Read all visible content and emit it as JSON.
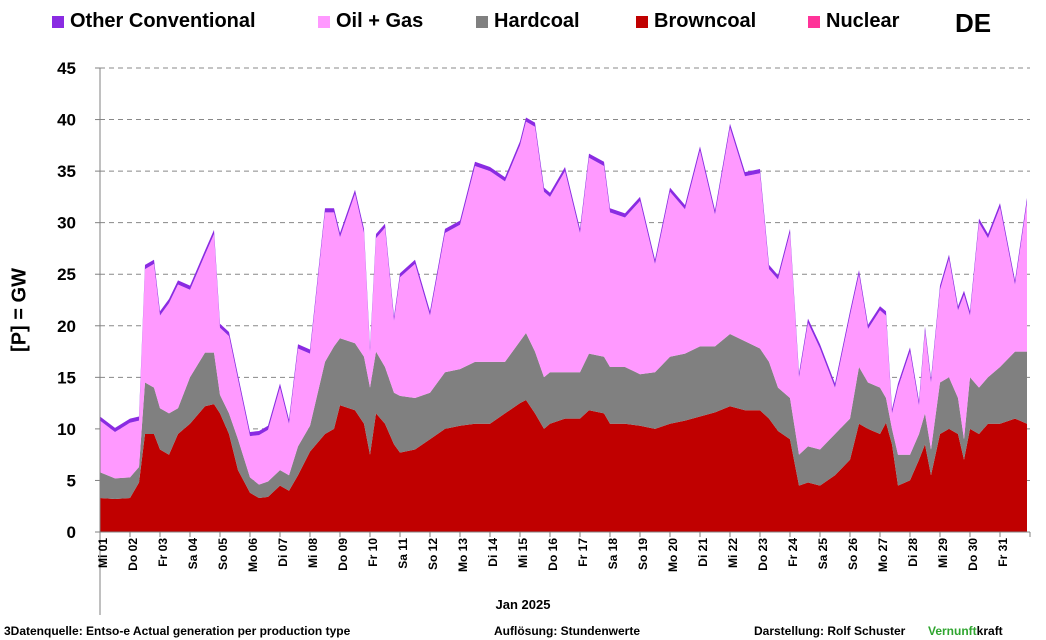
{
  "country": "DE",
  "legend": [
    {
      "name": "Other Conventional",
      "color": "#8a2be2"
    },
    {
      "name": "Oil + Gas",
      "color": "#ff99ff"
    },
    {
      "name": "Hardcoal",
      "color": "#808080"
    },
    {
      "name": "Browncoal",
      "color": "#c00000"
    },
    {
      "name": "Nuclear",
      "color": "#ff3399"
    }
  ],
  "axis": {
    "ylabel": "[P] =  GW",
    "xlabel": "Jan 2025"
  },
  "footer": {
    "source": "3Datenquelle: Entso-e  Actual generation per production type",
    "resolution": "Auflösung: Stundenwerte",
    "author": "Darstellung:  Rolf Schuster",
    "brand_part1": "Vernunft",
    "brand_part2": "kraft"
  },
  "chart_data": {
    "type": "area",
    "stacked": true,
    "ylim": [
      0,
      45
    ],
    "yticks": [
      0,
      5,
      10,
      15,
      20,
      25,
      30,
      35,
      40,
      45
    ],
    "grid": "horizontal dashed",
    "legend_position": "top",
    "x_days": [
      "Mi 01",
      "Do 02",
      "Fr 03",
      "Sa 04",
      "So 05",
      "Mo 06",
      "Di 07",
      "Mi 08",
      "Do 09",
      "Fr 10",
      "Sa 11",
      "So 12",
      "Mo 13",
      "Di 14",
      "Mi 15",
      "Do 16",
      "Fr 17",
      "Sa 18",
      "So 19",
      "Mo 20",
      "Di 21",
      "Mi 22",
      "Do 23",
      "Fr 24",
      "Sa 25",
      "So 26",
      "Mo 27",
      "Di 28",
      "Mi 29",
      "Do 30",
      "Fr 31"
    ],
    "x_unit": "day of January 2025 (1.0 = start of Mi 01)",
    "series": [
      {
        "name": "Browncoal",
        "color": "#c00000",
        "points": [
          [
            1.0,
            3.3
          ],
          [
            1.5,
            3.2
          ],
          [
            2.0,
            3.3
          ],
          [
            2.3,
            4.8
          ],
          [
            2.5,
            9.5
          ],
          [
            2.8,
            9.5
          ],
          [
            3.0,
            8.0
          ],
          [
            3.3,
            7.5
          ],
          [
            3.6,
            9.5
          ],
          [
            4.0,
            10.5
          ],
          [
            4.5,
            12.2
          ],
          [
            4.8,
            12.4
          ],
          [
            5.0,
            11.5
          ],
          [
            5.3,
            9.5
          ],
          [
            5.6,
            6.0
          ],
          [
            6.0,
            3.8
          ],
          [
            6.3,
            3.3
          ],
          [
            6.6,
            3.4
          ],
          [
            7.0,
            4.5
          ],
          [
            7.3,
            4.0
          ],
          [
            7.6,
            5.5
          ],
          [
            8.0,
            7.8
          ],
          [
            8.5,
            9.5
          ],
          [
            8.8,
            10.0
          ],
          [
            9.0,
            12.3
          ],
          [
            9.5,
            11.8
          ],
          [
            9.8,
            10.5
          ],
          [
            10.0,
            7.5
          ],
          [
            10.2,
            11.5
          ],
          [
            10.5,
            10.5
          ],
          [
            10.8,
            8.5
          ],
          [
            11.0,
            7.7
          ],
          [
            11.5,
            8.0
          ],
          [
            12.0,
            9.0
          ],
          [
            12.5,
            10.0
          ],
          [
            13.0,
            10.3
          ],
          [
            13.5,
            10.5
          ],
          [
            14.0,
            10.5
          ],
          [
            14.5,
            11.5
          ],
          [
            15.0,
            12.5
          ],
          [
            15.2,
            12.8
          ],
          [
            15.5,
            11.5
          ],
          [
            15.8,
            10.0
          ],
          [
            16.0,
            10.5
          ],
          [
            16.5,
            11.0
          ],
          [
            17.0,
            11.0
          ],
          [
            17.3,
            11.8
          ],
          [
            17.8,
            11.5
          ],
          [
            18.0,
            10.5
          ],
          [
            18.5,
            10.5
          ],
          [
            19.0,
            10.3
          ],
          [
            19.5,
            10.0
          ],
          [
            20.0,
            10.5
          ],
          [
            20.5,
            10.8
          ],
          [
            21.0,
            11.2
          ],
          [
            21.5,
            11.6
          ],
          [
            22.0,
            12.2
          ],
          [
            22.5,
            11.8
          ],
          [
            23.0,
            11.8
          ],
          [
            23.3,
            11.0
          ],
          [
            23.6,
            9.8
          ],
          [
            24.0,
            9.0
          ],
          [
            24.3,
            4.5
          ],
          [
            24.6,
            4.8
          ],
          [
            25.0,
            4.5
          ],
          [
            25.5,
            5.5
          ],
          [
            26.0,
            7.0
          ],
          [
            26.3,
            10.5
          ],
          [
            26.6,
            10.0
          ],
          [
            27.0,
            9.5
          ],
          [
            27.2,
            10.6
          ],
          [
            27.4,
            8.5
          ],
          [
            27.6,
            4.5
          ],
          [
            28.0,
            5.0
          ],
          [
            28.3,
            7.0
          ],
          [
            28.5,
            8.5
          ],
          [
            28.7,
            5.5
          ],
          [
            29.0,
            9.5
          ],
          [
            29.3,
            10.0
          ],
          [
            29.6,
            9.5
          ],
          [
            29.8,
            7.0
          ],
          [
            30.0,
            10.0
          ],
          [
            30.3,
            9.5
          ],
          [
            30.6,
            10.5
          ],
          [
            31.0,
            10.5
          ],
          [
            31.5,
            11.0
          ],
          [
            31.9,
            10.5
          ]
        ]
      },
      {
        "name": "Hardcoal",
        "color": "#808080",
        "points": [
          [
            1.0,
            2.5
          ],
          [
            1.5,
            2.0
          ],
          [
            2.0,
            2.0
          ],
          [
            2.3,
            1.5
          ],
          [
            2.5,
            5.0
          ],
          [
            2.8,
            4.5
          ],
          [
            3.0,
            4.0
          ],
          [
            3.3,
            4.0
          ],
          [
            3.6,
            2.5
          ],
          [
            4.0,
            4.5
          ],
          [
            4.5,
            5.2
          ],
          [
            4.8,
            5.0
          ],
          [
            5.0,
            1.8
          ],
          [
            5.3,
            2.0
          ],
          [
            5.6,
            3.0
          ],
          [
            6.0,
            1.5
          ],
          [
            6.3,
            1.3
          ],
          [
            6.6,
            1.5
          ],
          [
            7.0,
            1.5
          ],
          [
            7.3,
            1.5
          ],
          [
            7.6,
            2.8
          ],
          [
            8.0,
            2.5
          ],
          [
            8.5,
            7.0
          ],
          [
            8.8,
            8.0
          ],
          [
            9.0,
            6.5
          ],
          [
            9.5,
            6.5
          ],
          [
            9.8,
            6.5
          ],
          [
            10.0,
            6.5
          ],
          [
            10.2,
            6.0
          ],
          [
            10.5,
            5.5
          ],
          [
            10.8,
            5.0
          ],
          [
            11.0,
            5.5
          ],
          [
            11.5,
            5.0
          ],
          [
            12.0,
            4.5
          ],
          [
            12.5,
            5.5
          ],
          [
            13.0,
            5.5
          ],
          [
            13.5,
            6.0
          ],
          [
            14.0,
            6.0
          ],
          [
            14.5,
            5.0
          ],
          [
            15.0,
            6.0
          ],
          [
            15.2,
            6.5
          ],
          [
            15.5,
            6.0
          ],
          [
            15.8,
            5.0
          ],
          [
            16.0,
            5.0
          ],
          [
            16.5,
            4.5
          ],
          [
            17.0,
            4.5
          ],
          [
            17.3,
            5.5
          ],
          [
            17.8,
            5.5
          ],
          [
            18.0,
            5.5
          ],
          [
            18.5,
            5.5
          ],
          [
            19.0,
            5.0
          ],
          [
            19.5,
            5.5
          ],
          [
            20.0,
            6.5
          ],
          [
            20.5,
            6.5
          ],
          [
            21.0,
            6.8
          ],
          [
            21.5,
            6.4
          ],
          [
            22.0,
            7.0
          ],
          [
            22.5,
            6.7
          ],
          [
            23.0,
            6.0
          ],
          [
            23.3,
            5.5
          ],
          [
            23.6,
            4.2
          ],
          [
            24.0,
            4.0
          ],
          [
            24.3,
            3.0
          ],
          [
            24.6,
            3.5
          ],
          [
            25.0,
            3.5
          ],
          [
            25.5,
            4.0
          ],
          [
            26.0,
            4.0
          ],
          [
            26.3,
            5.5
          ],
          [
            26.6,
            4.5
          ],
          [
            27.0,
            4.5
          ],
          [
            27.2,
            2.4
          ],
          [
            27.4,
            1.5
          ],
          [
            27.6,
            3.0
          ],
          [
            28.0,
            2.5
          ],
          [
            28.3,
            2.5
          ],
          [
            28.5,
            3.0
          ],
          [
            28.7,
            2.5
          ],
          [
            29.0,
            5.0
          ],
          [
            29.3,
            5.0
          ],
          [
            29.6,
            3.5
          ],
          [
            29.8,
            2.0
          ],
          [
            30.0,
            5.0
          ],
          [
            30.3,
            4.5
          ],
          [
            30.6,
            4.5
          ],
          [
            31.0,
            5.5
          ],
          [
            31.5,
            6.5
          ],
          [
            31.9,
            7.0
          ]
        ]
      },
      {
        "name": "Oil + Gas",
        "color": "#ff99ff",
        "points": [
          [
            1.0,
            5.0
          ],
          [
            1.5,
            4.5
          ],
          [
            2.0,
            5.3
          ],
          [
            2.3,
            4.5
          ],
          [
            2.5,
            11.0
          ],
          [
            2.8,
            12.0
          ],
          [
            3.0,
            9.0
          ],
          [
            3.3,
            10.7
          ],
          [
            3.6,
            12.0
          ],
          [
            4.0,
            8.5
          ],
          [
            4.5,
            9.5
          ],
          [
            4.8,
            11.5
          ],
          [
            5.0,
            6.5
          ],
          [
            5.3,
            7.5
          ],
          [
            5.6,
            5.8
          ],
          [
            6.0,
            4.0
          ],
          [
            6.3,
            4.8
          ],
          [
            6.6,
            5.0
          ],
          [
            7.0,
            8.0
          ],
          [
            7.3,
            5.0
          ],
          [
            7.6,
            9.5
          ],
          [
            8.0,
            7.0
          ],
          [
            8.5,
            14.5
          ],
          [
            8.8,
            13.0
          ],
          [
            9.0,
            9.8
          ],
          [
            9.5,
            14.5
          ],
          [
            9.8,
            12.0
          ],
          [
            10.0,
            3.5
          ],
          [
            10.2,
            11.0
          ],
          [
            10.5,
            13.5
          ],
          [
            10.8,
            7.0
          ],
          [
            11.0,
            11.5
          ],
          [
            11.5,
            13.0
          ],
          [
            12.0,
            7.5
          ],
          [
            12.5,
            13.5
          ],
          [
            13.0,
            14.0
          ],
          [
            13.5,
            19.0
          ],
          [
            14.0,
            18.5
          ],
          [
            14.5,
            17.5
          ],
          [
            15.0,
            19.0
          ],
          [
            15.2,
            20.5
          ],
          [
            15.5,
            21.8
          ],
          [
            15.8,
            18.0
          ],
          [
            16.0,
            17.0
          ],
          [
            16.5,
            19.5
          ],
          [
            17.0,
            13.5
          ],
          [
            17.3,
            19.0
          ],
          [
            17.8,
            18.5
          ],
          [
            18.0,
            15.0
          ],
          [
            18.5,
            14.5
          ],
          [
            19.0,
            16.8
          ],
          [
            19.5,
            10.5
          ],
          [
            20.0,
            16.0
          ],
          [
            20.5,
            14.0
          ],
          [
            21.0,
            19.0
          ],
          [
            21.5,
            12.8
          ],
          [
            22.0,
            20.0
          ],
          [
            22.5,
            16.0
          ],
          [
            23.0,
            17.0
          ],
          [
            23.3,
            9.0
          ],
          [
            23.6,
            10.5
          ],
          [
            24.0,
            16.0
          ],
          [
            24.3,
            7.5
          ],
          [
            24.6,
            12.0
          ],
          [
            25.0,
            9.8
          ],
          [
            25.5,
            4.5
          ],
          [
            26.0,
            10.0
          ],
          [
            26.3,
            9.0
          ],
          [
            26.6,
            5.2
          ],
          [
            27.0,
            7.5
          ],
          [
            27.2,
            8.0
          ],
          [
            27.4,
            1.5
          ],
          [
            27.6,
            6.5
          ],
          [
            28.0,
            10.0
          ],
          [
            28.3,
            2.8
          ],
          [
            28.5,
            8.0
          ],
          [
            28.7,
            6.5
          ],
          [
            29.0,
            9.0
          ],
          [
            29.3,
            11.5
          ],
          [
            29.6,
            8.5
          ],
          [
            29.8,
            14.0
          ],
          [
            30.0,
            6.0
          ],
          [
            30.3,
            16.0
          ],
          [
            30.6,
            13.5
          ],
          [
            31.0,
            15.5
          ],
          [
            31.5,
            6.5
          ],
          [
            31.9,
            14.5
          ]
        ]
      },
      {
        "name": "Other Conventional",
        "color": "#8a2be2",
        "points": [
          [
            1.0,
            0.4
          ],
          [
            2.0,
            0.4
          ],
          [
            3.0,
            0.4
          ],
          [
            4.0,
            0.4
          ],
          [
            5.0,
            0.4
          ],
          [
            6.0,
            0.4
          ],
          [
            7.0,
            0.4
          ],
          [
            8.0,
            0.4
          ],
          [
            9.0,
            0.4
          ],
          [
            10.0,
            0.4
          ],
          [
            11.0,
            0.4
          ],
          [
            12.0,
            0.4
          ],
          [
            13.0,
            0.4
          ],
          [
            14.0,
            0.4
          ],
          [
            15.0,
            0.4
          ],
          [
            16.0,
            0.4
          ],
          [
            17.0,
            0.4
          ],
          [
            18.0,
            0.4
          ],
          [
            19.0,
            0.4
          ],
          [
            20.0,
            0.4
          ],
          [
            21.0,
            0.4
          ],
          [
            22.0,
            0.4
          ],
          [
            23.0,
            0.4
          ],
          [
            24.0,
            0.4
          ],
          [
            25.0,
            0.4
          ],
          [
            26.0,
            0.4
          ],
          [
            27.0,
            0.4
          ],
          [
            28.0,
            0.4
          ],
          [
            29.0,
            0.4
          ],
          [
            30.0,
            0.4
          ],
          [
            31.0,
            0.4
          ],
          [
            31.9,
            0.4
          ]
        ]
      },
      {
        "name": "Nuclear",
        "color": "#ff3399",
        "points": [
          [
            1.0,
            0
          ],
          [
            31.9,
            0
          ]
        ]
      }
    ]
  }
}
